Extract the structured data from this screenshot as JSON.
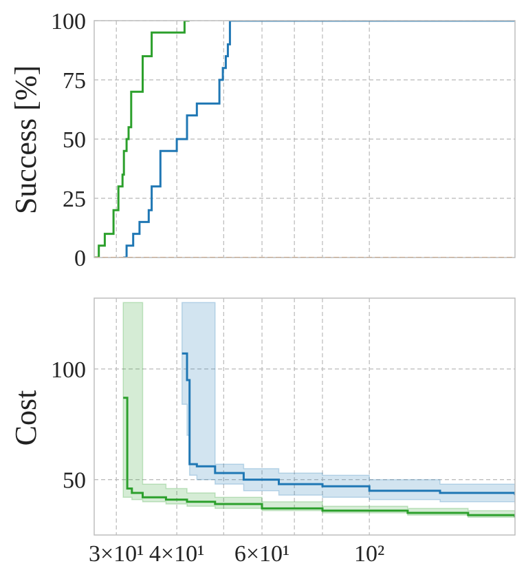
{
  "chart_data": [
    {
      "type": "line",
      "ylabel": "Success [%]",
      "x_scale": "log",
      "xlim": [
        27,
        200
      ],
      "ylim": [
        0,
        100
      ],
      "y_ticks": [
        "0",
        "25",
        "50",
        "75",
        "100"
      ],
      "grid": true,
      "series": [
        {
          "color": "#2ca02c",
          "x": [
            27,
            27.6,
            28.4,
            29.6,
            30.3,
            30.9,
            31.1,
            31.5,
            31.8,
            32.2,
            33.0,
            34.0,
            35.5,
            37.5,
            41.5,
            42.5
          ],
          "y": [
            0,
            5,
            10,
            20,
            30,
            35,
            45,
            50,
            55,
            70,
            70,
            85,
            95,
            95,
            100,
            100
          ]
        },
        {
          "color": "#1f77b4",
          "x": [
            31.0,
            31.5,
            32.5,
            33.5,
            35.0,
            35.5,
            37.0,
            38.0,
            40.0,
            42.0,
            44.0,
            46.5,
            49.0,
            49.8,
            50.5,
            51.0,
            51.5,
            200
          ],
          "y": [
            0,
            5,
            10,
            15,
            20,
            30,
            45,
            45,
            50,
            60,
            65,
            65,
            75,
            80,
            85,
            90,
            100,
            100
          ]
        },
        {
          "color": "#ff7f0e",
          "dashed": true,
          "x": [
            27,
            200
          ],
          "y": [
            0,
            0
          ]
        }
      ]
    },
    {
      "type": "line",
      "ylabel": "Cost",
      "x_scale": "log",
      "xlim": [
        27,
        200
      ],
      "ylim": [
        25,
        132
      ],
      "y_ticks": [
        "50",
        "100"
      ],
      "x_ticks": [
        {
          "value": 30,
          "label": "3×10¹"
        },
        {
          "value": 40,
          "label": "4×10¹"
        },
        {
          "value": 60,
          "label": "6×10¹"
        },
        {
          "value": 100,
          "label": "10²"
        }
      ],
      "grid": true,
      "series": [
        {
          "color": "#2ca02c",
          "x": [
            31.0,
            31.4,
            31.6,
            32.3,
            34.0,
            38.0,
            42.0,
            48.0,
            60.0,
            80.0,
            120.0,
            160.0,
            200.0
          ],
          "y": [
            87,
            87,
            46,
            44,
            42,
            41,
            40,
            39,
            37,
            36,
            35,
            34,
            33
          ],
          "band_upper": [
            130,
            130,
            130,
            130,
            48,
            46,
            44,
            42,
            40,
            38,
            37,
            36,
            35
          ],
          "band_lower": [
            42,
            42,
            42,
            41,
            40,
            39,
            38,
            37,
            36,
            35,
            34,
            33,
            32
          ]
        },
        {
          "color": "#1f77b4",
          "x": [
            41.0,
            41.8,
            42.0,
            42.5,
            44.0,
            48.0,
            55.0,
            65.0,
            80.0,
            100.0,
            140.0,
            200.0
          ],
          "y": [
            107,
            107,
            95,
            57,
            56,
            53,
            50,
            48,
            47,
            45,
            44,
            43
          ],
          "band_upper": [
            130,
            130,
            130,
            130,
            130,
            57,
            55,
            53,
            52,
            50,
            48,
            46
          ],
          "band_lower": [
            84,
            84,
            70,
            52,
            50,
            48,
            45,
            43,
            42,
            41,
            40,
            39
          ]
        }
      ]
    }
  ]
}
